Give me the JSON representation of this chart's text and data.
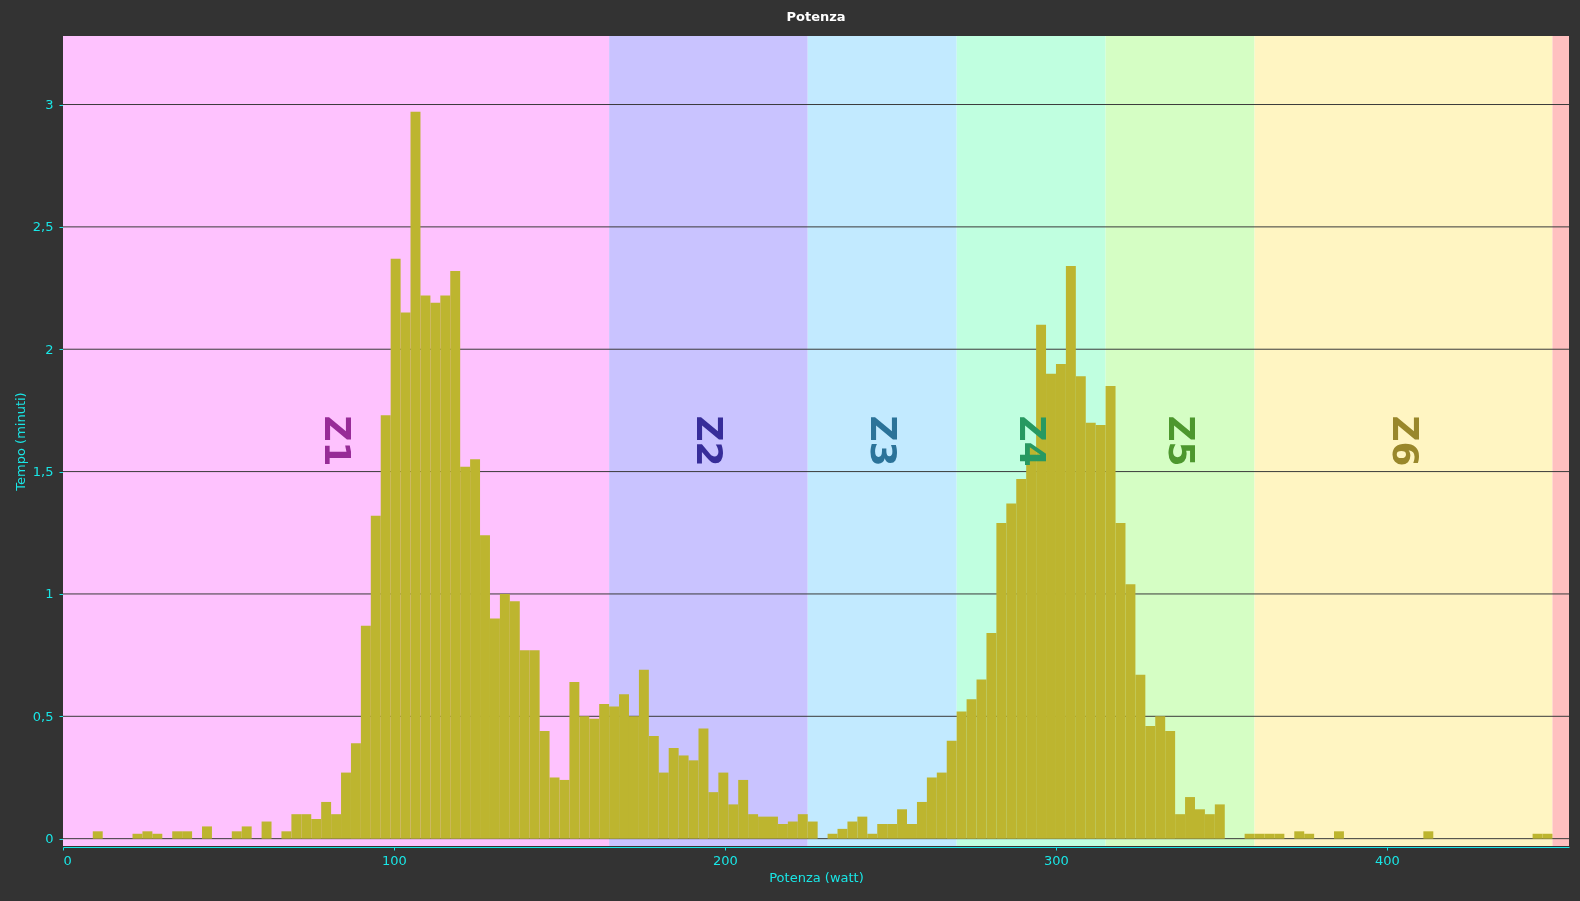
{
  "chart_data": {
    "type": "histogram",
    "title": "Potenza",
    "xlabel": "Potenza (watt)",
    "ylabel": "Tempo (minuti)",
    "bins": [
      0,
      3,
      6,
      9,
      12,
      15,
      18,
      21,
      24,
      27,
      30,
      33,
      36,
      39,
      42,
      45,
      48,
      51,
      54,
      57,
      60,
      63,
      66,
      69,
      72,
      75,
      78,
      81,
      84,
      87,
      90,
      93,
      96,
      99,
      102,
      105,
      108,
      111,
      114,
      117,
      120,
      123,
      126,
      129,
      132,
      135,
      138,
      141,
      144,
      147,
      150,
      153,
      156,
      159,
      162,
      165,
      168,
      171,
      174,
      177,
      180,
      183,
      186,
      189,
      192,
      195,
      198,
      201,
      204,
      207,
      210,
      213,
      216,
      219,
      222,
      225,
      228,
      231,
      234,
      237,
      240,
      243,
      246,
      249,
      252,
      255,
      258,
      261,
      264,
      267,
      270,
      273,
      276,
      279,
      282,
      285,
      288,
      291,
      294,
      297,
      300,
      303,
      306,
      309,
      312,
      315,
      318,
      321,
      324,
      327,
      330,
      333,
      336,
      339,
      342,
      345,
      348,
      351,
      354,
      357,
      360,
      363,
      366,
      369,
      372,
      375,
      378,
      381,
      384,
      387,
      390,
      393,
      396,
      399,
      402,
      405,
      408,
      411,
      414,
      417,
      420,
      423,
      426,
      429,
      432,
      435,
      438,
      441,
      444,
      447,
      450
    ],
    "values": [
      0,
      0,
      0,
      0.03,
      0,
      0,
      0,
      0.02,
      0.03,
      0.02,
      0,
      0.03,
      0.03,
      0,
      0.05,
      0,
      0,
      0.03,
      0.05,
      0,
      0.07,
      0,
      0.03,
      0.1,
      0.1,
      0.08,
      0.15,
      0.1,
      0.27,
      0.39,
      0.87,
      1.32,
      1.73,
      2.37,
      2.15,
      2.97,
      2.22,
      2.19,
      2.22,
      2.32,
      1.52,
      1.55,
      1.24,
      0.9,
      1.0,
      0.97,
      0.77,
      0.77,
      0.44,
      0.25,
      0.24,
      0.64,
      0.5,
      0.49,
      0.55,
      0.54,
      0.59,
      0.5,
      0.69,
      0.42,
      0.27,
      0.37,
      0.34,
      0.32,
      0.45,
      0.19,
      0.27,
      0.14,
      0.24,
      0.1,
      0.09,
      0.09,
      0.06,
      0.07,
      0.1,
      0.07,
      0,
      0.02,
      0.04,
      0.07,
      0.09,
      0.02,
      0.06,
      0.06,
      0.12,
      0.06,
      0.15,
      0.25,
      0.27,
      0.4,
      0.52,
      0.57,
      0.65,
      0.84,
      1.29,
      1.37,
      1.47,
      1.6,
      2.1,
      1.9,
      1.94,
      2.34,
      1.89,
      1.7,
      1.69,
      1.85,
      1.29,
      1.04,
      0.67,
      0.46,
      0.5,
      0.44,
      0.1,
      0.17,
      0.12,
      0.1,
      0.14,
      0,
      0,
      0.02,
      0.02,
      0.02,
      0.02,
      0,
      0.03,
      0.02,
      0,
      0,
      0.03,
      0,
      0,
      0,
      0,
      0,
      0,
      0,
      0,
      0.03,
      0,
      0,
      0,
      0,
      0,
      0,
      0,
      0,
      0,
      0,
      0.02,
      0.02
    ],
    "color": "#bdb52f",
    "xlim": [
      0,
      455
    ],
    "ylim": [
      -0.03,
      3.28
    ],
    "xticks": [
      0,
      100,
      200,
      300,
      400
    ],
    "yticks": [
      0,
      {
        "value": 0.5,
        "label": "0,5"
      },
      1,
      {
        "value": 1.5,
        "label": "1,5"
      },
      2,
      {
        "value": 2.5,
        "label": "2,5"
      },
      3
    ],
    "grid": "y",
    "bands": [
      {
        "axis": "x",
        "from": 0,
        "to": 165,
        "label": "Z1",
        "color": "#fec2fe"
      },
      {
        "axis": "x",
        "from": 165,
        "to": 225,
        "label": "Z2",
        "color": "#c9c3ff"
      },
      {
        "axis": "x",
        "from": 225,
        "to": 270,
        "label": "Z3",
        "color": "#c2eaff"
      },
      {
        "axis": "x",
        "from": 270,
        "to": 315,
        "label": "Z4",
        "color": "#c0ffe0"
      },
      {
        "axis": "x",
        "from": 315,
        "to": 360,
        "label": "Z5",
        "color": "#d5fec4"
      },
      {
        "axis": "x",
        "from": 360,
        "to": 450,
        "label": "Z6",
        "color": "#fff5c2"
      },
      {
        "axis": "x",
        "from": 450,
        "to": 455,
        "color": "#ffc0c0"
      }
    ]
  }
}
